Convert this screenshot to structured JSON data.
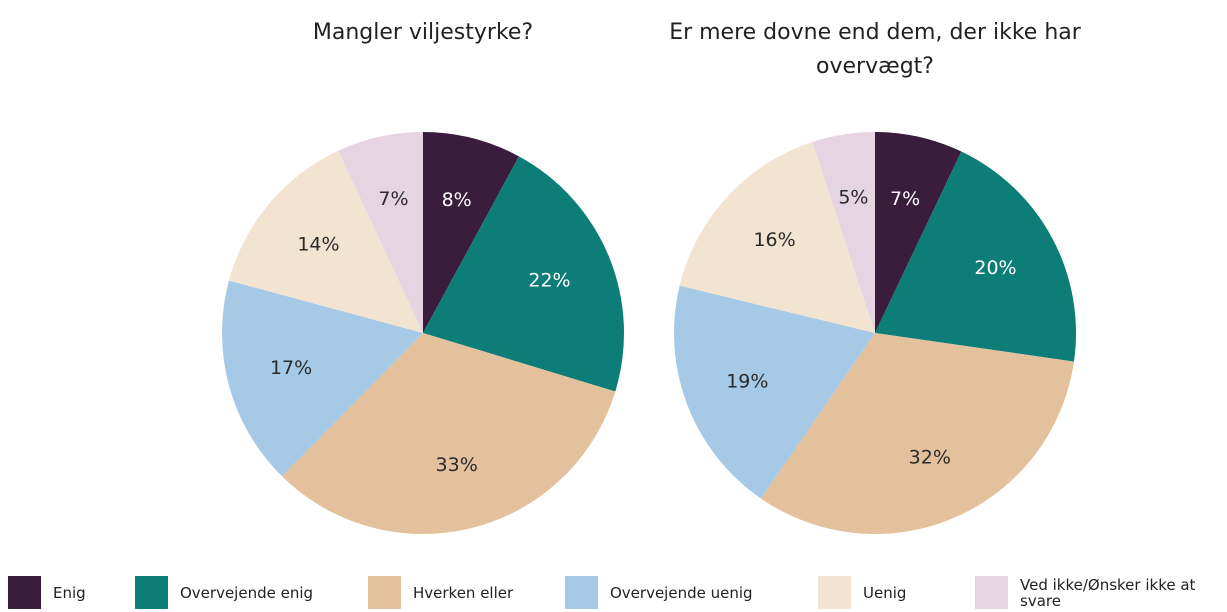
{
  "chart_data": [
    {
      "type": "pie",
      "title": "Mangler viljestyrke?",
      "values": [
        8,
        22,
        33,
        17,
        14,
        7
      ],
      "value_labels": [
        "8%",
        "22%",
        "33%",
        "17%",
        "14%",
        "7%"
      ]
    },
    {
      "type": "pie",
      "title": "Er mere dovne end dem, der ikke har overvægt?",
      "values": [
        7,
        20,
        32,
        19,
        16,
        5
      ],
      "value_labels": [
        "7%",
        "20%",
        "32%",
        "19%",
        "16%",
        "5%"
      ]
    }
  ],
  "legend": {
    "labels": [
      "Enig",
      "Overvejende enig",
      "Hverken eller",
      "Overvejende uenig",
      "Uenig",
      "Ved ikke/Ønsker ikke at svare"
    ],
    "colors": [
      "#3a1d3c",
      "#0d7d78",
      "#e3c19c",
      "#a6cae6",
      "#f3e4d2",
      "#e6d4e2"
    ]
  }
}
